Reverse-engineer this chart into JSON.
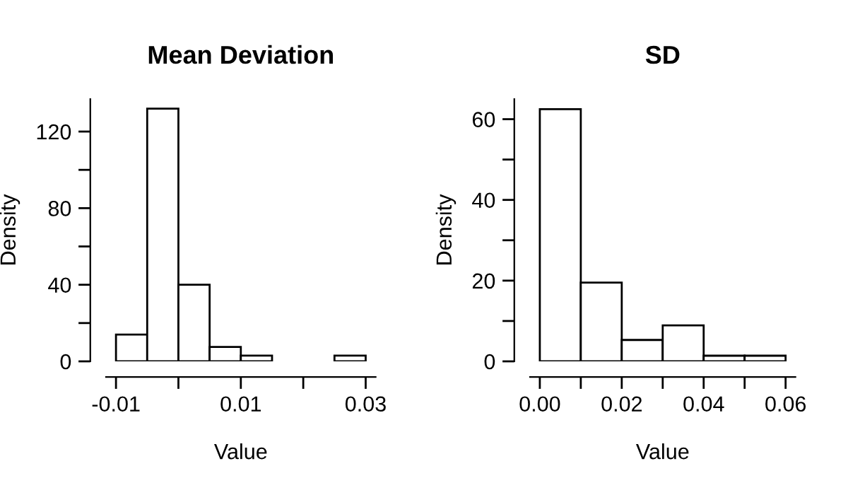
{
  "chart_data": [
    {
      "type": "histogram",
      "title": "Mean Deviation",
      "xlabel": "Value",
      "ylabel": "Density",
      "color": "#ffffff",
      "bins": [
        -0.01,
        -0.005,
        0,
        0.005,
        0.01,
        0.015,
        0.02,
        0.025,
        0.03
      ],
      "values": [
        14,
        132,
        40,
        7.5,
        3,
        0,
        0,
        3
      ],
      "xlim": [
        -0.0116,
        0.0316
      ],
      "ylim": [
        0,
        137
      ],
      "xticks": [
        {
          "value": -0.01,
          "label": "-0.01"
        },
        {
          "value": 0,
          "label": null
        },
        {
          "value": 0.01,
          "label": "0.01"
        },
        {
          "value": 0.02,
          "label": null
        },
        {
          "value": 0.03,
          "label": "0.03"
        }
      ],
      "yticks": [
        0,
        {
          "value": 20,
          "label": null
        },
        40,
        {
          "value": 60,
          "label": null
        },
        80,
        {
          "value": 100,
          "label": null
        },
        120
      ]
    },
    {
      "type": "histogram",
      "title": "SD",
      "xlabel": "Value",
      "ylabel": "Density",
      "color": "#ffffff",
      "bins": [
        0,
        0.01,
        0.02,
        0.03,
        0.04,
        0.05,
        0.06
      ],
      "values": [
        62.5,
        19.5,
        5.3,
        8.9,
        1.4,
        1.4
      ],
      "xlim": [
        -0.0024,
        0.0624
      ],
      "ylim": [
        0,
        65
      ],
      "xticks": [
        {
          "value": 0,
          "label": "0.00"
        },
        {
          "value": 0.01,
          "label": null
        },
        {
          "value": 0.02,
          "label": "0.02"
        },
        {
          "value": 0.03,
          "label": null
        },
        {
          "value": 0.04,
          "label": "0.04"
        },
        {
          "value": 0.05,
          "label": null
        },
        {
          "value": 0.06,
          "label": "0.06"
        }
      ],
      "yticks": [
        0,
        {
          "value": 10,
          "label": null
        },
        20,
        {
          "value": 30,
          "label": null
        },
        40,
        {
          "value": 50,
          "label": null
        },
        60
      ]
    }
  ]
}
